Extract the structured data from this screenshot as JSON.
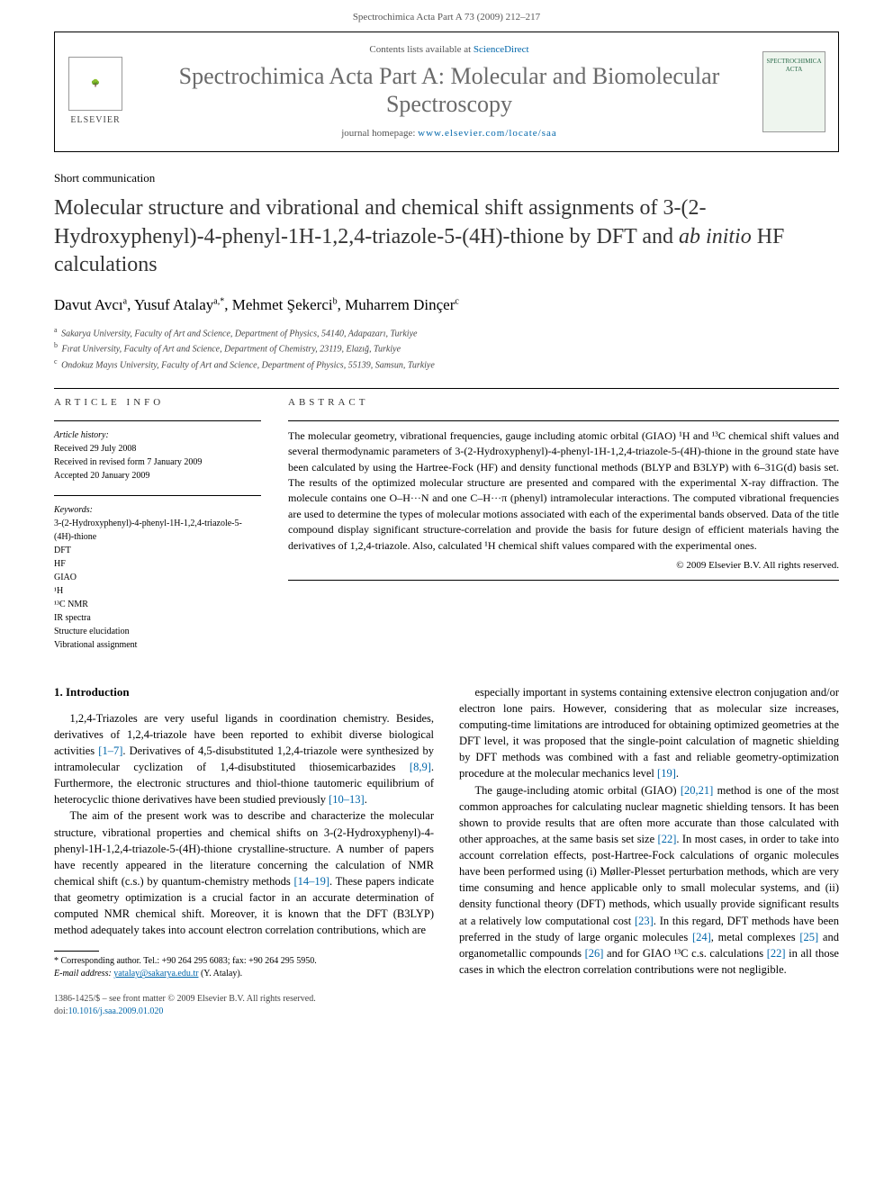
{
  "header": {
    "running_head": "Spectrochimica Acta Part A 73 (2009) 212–217"
  },
  "journal_box": {
    "contents_prefix": "Contents lists available at ",
    "contents_link": "ScienceDirect",
    "journal_title": "Spectrochimica Acta Part A: Molecular and Biomolecular Spectroscopy",
    "homepage_prefix": "journal homepage: ",
    "homepage_url": "www.elsevier.com/locate/saa",
    "publisher_brand": "ELSEVIER",
    "cover_label": "SPECTROCHIMICA ACTA"
  },
  "article": {
    "type": "Short communication",
    "title_line1": "Molecular structure and vibrational and chemical shift assignments of 3-(2-Hydroxyphenyl)-4-phenyl-1H-1,2,4-triazole-5-(4H)-thione by DFT and ",
    "title_italic": "ab initio",
    "title_line2": " HF calculations",
    "authors": [
      {
        "name": "Davut Avcı",
        "aff": "a"
      },
      {
        "name": "Yusuf Atalay",
        "aff": "a,*"
      },
      {
        "name": "Mehmet Şekerci",
        "aff": "b"
      },
      {
        "name": "Muharrem Dinçer",
        "aff": "c"
      }
    ],
    "affiliations": [
      {
        "key": "a",
        "text": "Sakarya University, Faculty of Art and Science, Department of Physics, 54140, Adapazarı, Turkiye"
      },
      {
        "key": "b",
        "text": "Fırat University, Faculty of Art and Science, Department of Chemistry, 23119, Elazığ, Turkiye"
      },
      {
        "key": "c",
        "text": "Ondokuz Mayıs University, Faculty of Art and Science, Department of Physics, 55139, Samsun, Turkiye"
      }
    ]
  },
  "info": {
    "heading": "ARTICLE INFO",
    "history_label": "Article history:",
    "history": [
      "Received 29 July 2008",
      "Received in revised form 7 January 2009",
      "Accepted 20 January 2009"
    ],
    "keywords_label": "Keywords:",
    "keywords": [
      "3-(2-Hydroxyphenyl)-4-phenyl-1H-1,2,4-triazole-5-(4H)-thione",
      "DFT",
      "HF",
      "GIAO",
      "¹H",
      "¹³C NMR",
      "IR spectra",
      "Structure elucidation",
      "Vibrational assignment"
    ]
  },
  "abstract": {
    "heading": "ABSTRACT",
    "text": "The molecular geometry, vibrational frequencies, gauge including atomic orbital (GIAO) ¹H and ¹³C chemical shift values and several thermodynamic parameters of 3-(2-Hydroxyphenyl)-4-phenyl-1H-1,2,4-triazole-5-(4H)-thione in the ground state have been calculated by using the Hartree-Fock (HF) and density functional methods (BLYP and B3LYP) with 6–31G(d) basis set. The results of the optimized molecular structure are presented and compared with the experimental X-ray diffraction. The molecule contains one O–H···N and one C–H···π (phenyl) intramolecular interactions. The computed vibrational frequencies are used to determine the types of molecular motions associated with each of the experimental bands observed. Data of the title compound display significant structure-correlation and provide the basis for future design of efficient materials having the derivatives of 1,2,4-triazole. Also, calculated ¹H chemical shift values compared with the experimental ones.",
    "copyright": "© 2009 Elsevier B.V. All rights reserved."
  },
  "body": {
    "section1_heading": "1. Introduction",
    "p1": "1,2,4-Triazoles are very useful ligands in coordination chemistry. Besides, derivatives of 1,2,4-triazole have been reported to exhibit diverse biological activities [1–7]. Derivatives of 4,5-disubstituted 1,2,4-triazole were synthesized by intramolecular cyclization of 1,4-disubstituted thiosemicarbazides [8,9]. Furthermore, the electronic structures and thiol-thione tautomeric equilibrium of heterocyclic thione derivatives have been studied previously [10–13].",
    "p2": "The aim of the present work was to describe and characterize the molecular structure, vibrational properties and chemical shifts on 3-(2-Hydroxyphenyl)-4-phenyl-1H-1,2,4-triazole-5-(4H)-thione crystalline-structure. A number of papers have recently appeared in the literature concerning the calculation of NMR chemical shift (c.s.) by quantum-chemistry methods [14–19]. These papers indicate that geometry optimization is a crucial factor in an accurate determination of computed NMR chemical shift. Moreover, it is known that the DFT (B3LYP) method adequately takes into account electron correlation contributions, which are",
    "p3": "especially important in systems containing extensive electron conjugation and/or electron lone pairs. However, considering that as molecular size increases, computing-time limitations are introduced for obtaining optimized geometries at the DFT level, it was proposed that the single-point calculation of magnetic shielding by DFT methods was combined with a fast and reliable geometry-optimization procedure at the molecular mechanics level [19].",
    "p4": "The gauge-including atomic orbital (GIAO) [20,21] method is one of the most common approaches for calculating nuclear magnetic shielding tensors. It has been shown to provide results that are often more accurate than those calculated with other approaches, at the same basis set size [22]. In most cases, in order to take into account correlation effects, post-Hartree-Fock calculations of organic molecules have been performed using (i) Møller-Plesset perturbation methods, which are very time consuming and hence applicable only to small molecular systems, and (ii) density functional theory (DFT) methods, which usually provide significant results at a relatively low computational cost [23]. In this regard, DFT methods have been preferred in the study of large organic molecules [24], metal complexes [25] and organometallic compounds [26] and for GIAO ¹³C c.s. calculations [22] in all those cases in which the electron correlation contributions were not negligible."
  },
  "footnote": {
    "corr": "* Corresponding author. Tel.: +90 264 295 6083; fax: +90 264 295 5950.",
    "email_label": "E-mail address:",
    "email": "yatalay@sakarya.edu.tr",
    "email_who": "(Y. Atalay)."
  },
  "footer": {
    "issn": "1386-1425/$ – see front matter © 2009 Elsevier B.V. All rights reserved.",
    "doi_label": "doi:",
    "doi": "10.1016/j.saa.2009.01.020"
  },
  "colors": {
    "link": "#0066aa",
    "text": "#000000",
    "muted": "#555555",
    "title_gray": "#6a6a6a"
  }
}
